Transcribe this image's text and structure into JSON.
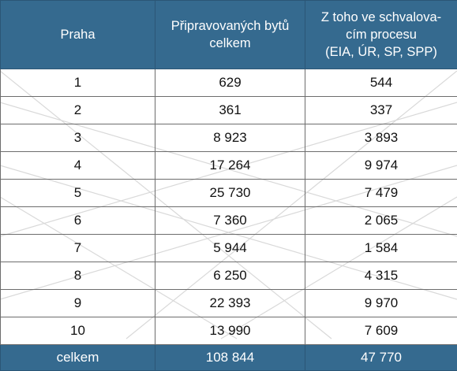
{
  "table": {
    "headers": {
      "col1": [
        "Praha"
      ],
      "col2": [
        "Připravovaných bytů",
        "celkem"
      ],
      "col3": [
        "Z toho ve schvalova-",
        "cím procesu",
        "(EIA, ÚR, SP, SPP)"
      ]
    },
    "rows": [
      {
        "district": "1",
        "total": "629",
        "approval": "544"
      },
      {
        "district": "2",
        "total": "361",
        "approval": "337"
      },
      {
        "district": "3",
        "total": "8 923",
        "approval": "3 893"
      },
      {
        "district": "4",
        "total": "17 264",
        "approval": "9 974"
      },
      {
        "district": "5",
        "total": "25 730",
        "approval": "7 479"
      },
      {
        "district": "6",
        "total": "7 360",
        "approval": "2 065"
      },
      {
        "district": "7",
        "total": "5 944",
        "approval": "1 584"
      },
      {
        "district": "8",
        "total": "6 250",
        "approval": "4 315"
      },
      {
        "district": "9",
        "total": "22 393",
        "approval": "9 970"
      },
      {
        "district": "10",
        "total": "13 990",
        "approval": "7 609"
      }
    ],
    "footer": {
      "label": "celkem",
      "total": "108 844",
      "approval": "47 770"
    }
  },
  "colors": {
    "header_bg": "#356a8f",
    "header_text": "#ffffff",
    "border": "#6d6d6d",
    "background_lines": "#d9d9d9"
  }
}
